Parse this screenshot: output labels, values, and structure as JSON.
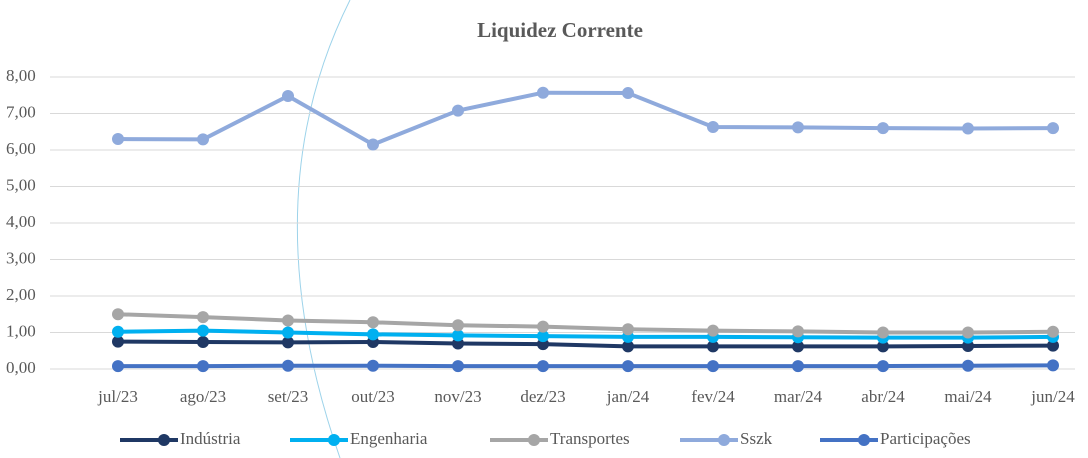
{
  "chart_data": {
    "type": "line",
    "title": "Liquidez Corrente",
    "categories": [
      "jul/23",
      "ago/23",
      "set/23",
      "out/23",
      "nov/23",
      "dez/23",
      "jan/24",
      "fev/24",
      "mar/24",
      "abr/24",
      "mai/24",
      "jun/24"
    ],
    "series": [
      {
        "name": "Indústria",
        "color": "#1f3864",
        "values": [
          0.75,
          0.74,
          0.73,
          0.74,
          0.7,
          0.68,
          0.62,
          0.62,
          0.62,
          0.62,
          0.63,
          0.64
        ]
      },
      {
        "name": "Engenharia",
        "color": "#00b0f0",
        "values": [
          1.02,
          1.05,
          1.0,
          0.95,
          0.92,
          0.9,
          0.88,
          0.88,
          0.87,
          0.86,
          0.86,
          0.88
        ]
      },
      {
        "name": "Transportes",
        "color": "#a6a6a6",
        "values": [
          1.5,
          1.42,
          1.33,
          1.28,
          1.2,
          1.16,
          1.09,
          1.05,
          1.03,
          1.0,
          1.0,
          1.02
        ]
      },
      {
        "name": "Sszk",
        "color": "#8faadc",
        "values": [
          6.3,
          6.29,
          7.48,
          6.15,
          7.08,
          7.57,
          7.56,
          6.63,
          6.62,
          6.6,
          6.59,
          6.6
        ]
      },
      {
        "name": "Participações",
        "color": "#4472c4",
        "values": [
          0.08,
          0.08,
          0.09,
          0.09,
          0.08,
          0.08,
          0.08,
          0.08,
          0.08,
          0.08,
          0.09,
          0.1
        ]
      }
    ],
    "ylim": [
      0,
      8
    ],
    "yticks": [
      {
        "value": 0,
        "label": "0,00"
      },
      {
        "value": 1,
        "label": "1,00"
      },
      {
        "value": 2,
        "label": "2,00"
      },
      {
        "value": 3,
        "label": "3,00"
      },
      {
        "value": 4,
        "label": "4,00"
      },
      {
        "value": 5,
        "label": "5,00"
      },
      {
        "value": 6,
        "label": "6,00"
      },
      {
        "value": 7,
        "label": "7,00"
      },
      {
        "value": 8,
        "label": "8,00"
      }
    ],
    "grid": true,
    "legend": "bottom"
  }
}
